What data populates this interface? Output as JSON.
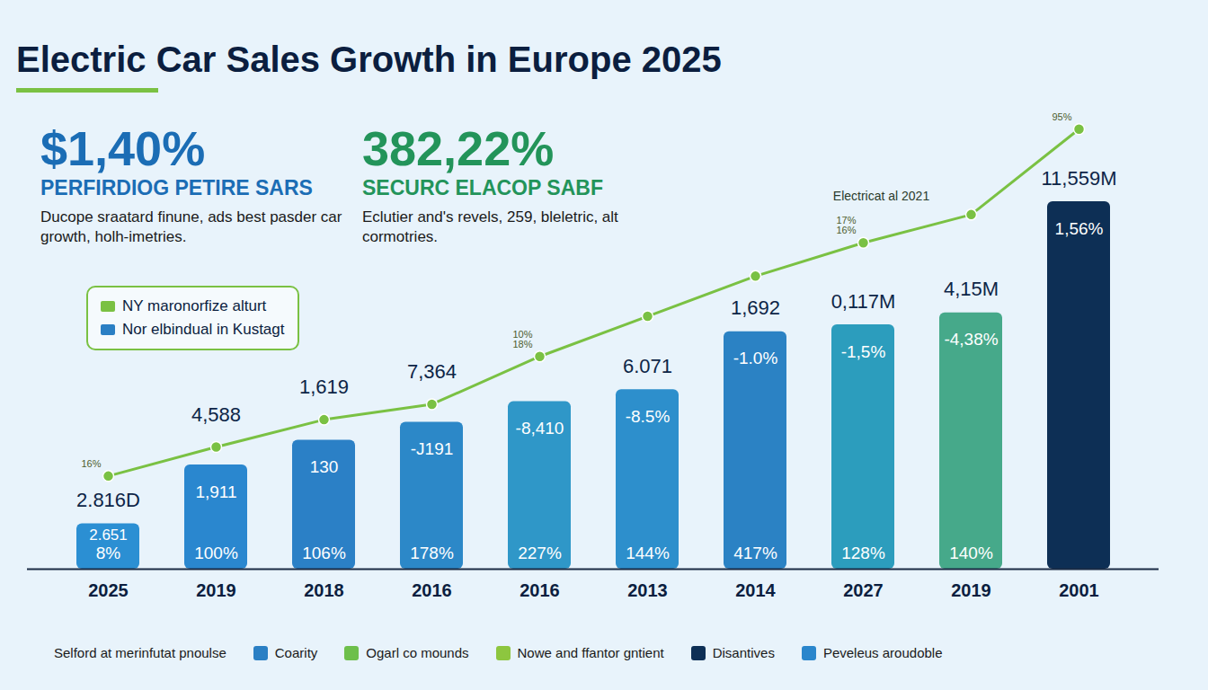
{
  "chart_data": {
    "type": "bar",
    "title": "Electric Car Sales Growth in Europe 2025",
    "kpis": [
      {
        "value": "$1,40%",
        "label": "PERFIRDIOG PETIRE SARS",
        "text": "Ducope sraatard finune, ads best pasder car growth, holh-imetries.",
        "color": "#1b6db5"
      },
      {
        "value": "382,22%",
        "label": "SECURC ELACOP SABF",
        "text": "Eclutier and's revels, 259, bleletric, alt cormotries.",
        "color": "#23945a"
      }
    ],
    "categories": [
      "2025",
      "2019",
      "2018",
      "2016",
      "2016",
      "2013",
      "2014",
      "2027",
      "2019",
      "2001"
    ],
    "series": [
      {
        "name": "Nor elbindual in Kustagt",
        "type": "bar",
        "color": "#2a7fc4",
        "colors": [
          "#2b8fd3",
          "#2a87cf",
          "#2b80c6",
          "#2c88c8",
          "#2f97c8",
          "#2d8fcc",
          "#2b82c4",
          "#2c9dbd",
          "#46a98a",
          "#0d2f55"
        ],
        "values": [
          10.6,
          24.4,
          30.2,
          34.4,
          39.2,
          42,
          55.6,
          57.2,
          60,
          86
        ],
        "top_labels": [
          "2.816D",
          "4,588",
          "1,619",
          "7,364",
          null,
          "6.071",
          "1,692",
          "0,117M",
          "4,15M",
          "11,559M"
        ],
        "inner_labels": [
          "2.651",
          "1,911",
          "130",
          "-J191",
          "-8,410",
          "-8.5%",
          "-1.0%",
          "-1,5%",
          "-4,38%",
          "1,56%"
        ],
        "bottom_labels": [
          "8%",
          "100%",
          "106%",
          "178%",
          "227%",
          "144%",
          "417%",
          "128%",
          "140%",
          null
        ]
      },
      {
        "name": "NY maronorfize alturt",
        "type": "line",
        "color": "#7ac143",
        "marker": "circle",
        "values": [
          21.8,
          28.6,
          35,
          38.6,
          49.8,
          59.2,
          68.6,
          76.4,
          83,
          103
        ],
        "point_labels": [
          [
            "16%"
          ],
          null,
          null,
          null,
          [
            "10%",
            "18%"
          ],
          null,
          null,
          [
            "17%",
            "16%"
          ],
          null,
          [
            "95%"
          ]
        ]
      }
    ],
    "annotations": [
      {
        "text": "Electricat al 2021",
        "category_index": 7
      }
    ],
    "ylim": [
      0,
      110
    ],
    "tick_labels": "x",
    "legend": "left",
    "footer_legend": [
      {
        "label": "Selford at merinfutat pnoulse",
        "color": null
      },
      {
        "label": "Coarity",
        "color": "#2a7fc4"
      },
      {
        "label": "Ogarl co mounds",
        "color": "#6dbf4b"
      },
      {
        "label": "Nowe and ffantor gntient",
        "color": "#8dc63f"
      },
      {
        "label": "Disantives",
        "color": "#0d2f55"
      },
      {
        "label": "Peveleus aroudoble",
        "color": "#2a86cc"
      }
    ]
  }
}
